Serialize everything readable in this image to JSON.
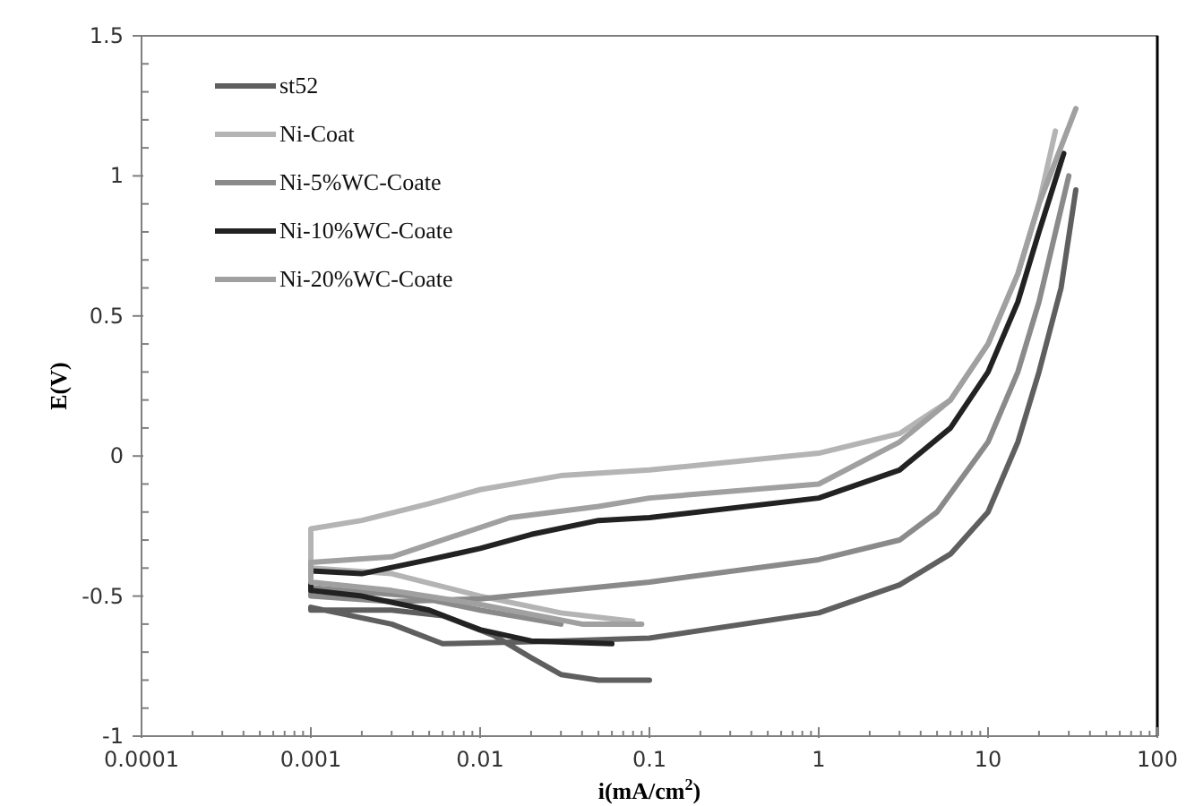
{
  "chart_data": {
    "type": "line",
    "xlabel": "i(mA/cm$^{2}$)",
    "ylabel": "E(V)",
    "log": "x",
    "xlim": [
      0.0001,
      100
    ],
    "xticks": [
      0.0001,
      0.001,
      0.01,
      0.1,
      1,
      10,
      100
    ],
    "ylim": [
      -1,
      1.5
    ],
    "yticks": [
      -1,
      -0.5,
      0,
      0.5,
      1,
      1.5
    ],
    "grid": false,
    "legend": "top left",
    "line_style": "solid",
    "marker": "none",
    "series": [
      {
        "name": "st52",
        "color": "#5f5f5f",
        "x": [
          0.1,
          0.05,
          0.03,
          0.02,
          0.012,
          0.006,
          0.003,
          0.001,
          0.001,
          0.003,
          0.006,
          0.03,
          0.1,
          1,
          3,
          6,
          10,
          15,
          20,
          27,
          33
        ],
        "values": [
          -0.8,
          -0.8,
          -0.78,
          -0.72,
          -0.64,
          -0.57,
          -0.55,
          -0.55,
          -0.54,
          -0.6,
          -0.67,
          -0.66,
          -0.65,
          -0.56,
          -0.46,
          -0.35,
          -0.2,
          0.05,
          0.3,
          0.6,
          0.95
        ]
      },
      {
        "name": "Ni-Coat",
        "color": "#b4b4b4",
        "x": [
          0.08,
          0.03,
          0.01,
          0.003,
          0.001,
          0.001,
          0.002,
          0.005,
          0.01,
          0.03,
          0.1,
          1,
          3,
          6,
          10,
          15,
          20,
          25
        ],
        "values": [
          -0.59,
          -0.56,
          -0.5,
          -0.42,
          -0.4,
          -0.26,
          -0.23,
          -0.17,
          -0.12,
          -0.07,
          -0.05,
          0.01,
          0.08,
          0.2,
          0.4,
          0.65,
          0.9,
          1.16
        ]
      },
      {
        "name": "Ni-5%WC-Coate",
        "color": "#8a8a8a",
        "x": [
          0.03,
          0.01,
          0.004,
          0.001,
          0.001,
          0.003,
          0.01,
          0.1,
          1,
          3,
          5,
          10,
          15,
          20,
          30
        ],
        "values": [
          -0.6,
          -0.55,
          -0.5,
          -0.47,
          -0.5,
          -0.52,
          -0.51,
          -0.45,
          -0.37,
          -0.3,
          -0.2,
          0.05,
          0.3,
          0.55,
          1.0
        ]
      },
      {
        "name": "Ni-10%WC-Coate",
        "color": "#222222",
        "x": [
          0.06,
          0.02,
          0.01,
          0.005,
          0.002,
          0.001,
          0.001,
          0.002,
          0.005,
          0.01,
          0.02,
          0.05,
          0.1,
          1,
          3,
          6,
          10,
          15,
          20,
          28
        ],
        "values": [
          -0.67,
          -0.66,
          -0.62,
          -0.55,
          -0.5,
          -0.48,
          -0.41,
          -0.42,
          -0.37,
          -0.33,
          -0.28,
          -0.23,
          -0.22,
          -0.15,
          -0.05,
          0.1,
          0.3,
          0.55,
          0.8,
          1.08
        ]
      },
      {
        "name": "Ni-20%WC-Coate",
        "color": "#a0a0a0",
        "x": [
          0.09,
          0.04,
          0.01,
          0.003,
          0.001,
          0.001,
          0.003,
          0.015,
          0.05,
          0.1,
          1,
          3,
          6,
          10,
          15,
          20,
          33
        ],
        "values": [
          -0.6,
          -0.6,
          -0.53,
          -0.48,
          -0.45,
          -0.38,
          -0.36,
          -0.22,
          -0.18,
          -0.15,
          -0.1,
          0.05,
          0.2,
          0.4,
          0.65,
          0.9,
          1.24
        ]
      }
    ]
  }
}
